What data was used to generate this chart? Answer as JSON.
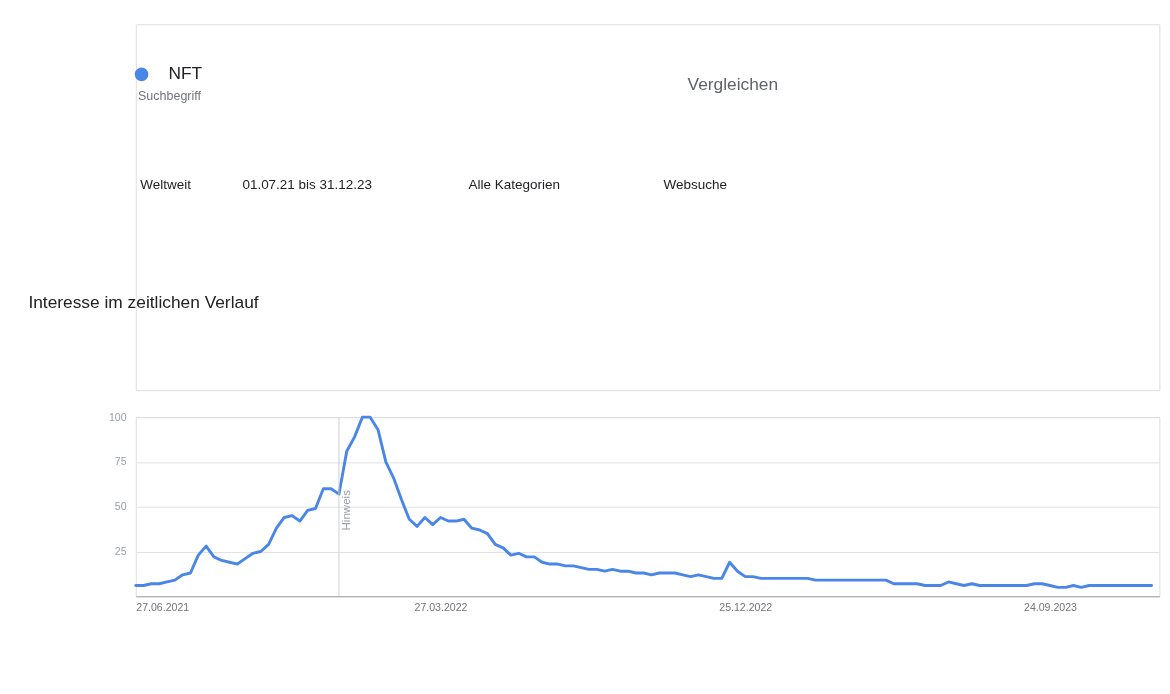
{
  "chart_data": {
    "type": "line",
    "title": "Interesse im zeitlichen Verlauf",
    "annotations": [
      "Suchbegriff",
      "Vergleichen",
      "Weltweit",
      "01.07.21 bis 31.12.23",
      "Alle Kategorien",
      "Websuche"
    ],
    "x": [
      "2021-06-27",
      "2021-07-04",
      "2021-07-11",
      "2021-07-18",
      "2021-07-25",
      "2021-08-01",
      "2021-08-08",
      "2021-08-15",
      "2021-08-22",
      "2021-08-29",
      "2021-09-05",
      "2021-09-12",
      "2021-09-19",
      "2021-09-26",
      "2021-10-03",
      "2021-10-10",
      "2021-10-17",
      "2021-10-24",
      "2021-10-31",
      "2021-11-07",
      "2021-11-14",
      "2021-11-21",
      "2021-11-28",
      "2021-12-05",
      "2021-12-12",
      "2021-12-19",
      "2021-12-26",
      "2022-01-02",
      "2022-01-09",
      "2022-01-16",
      "2022-01-23",
      "2022-01-30",
      "2022-02-06",
      "2022-02-13",
      "2022-02-20",
      "2022-02-27",
      "2022-03-06",
      "2022-03-13",
      "2022-03-20",
      "2022-03-27",
      "2022-04-03",
      "2022-04-10",
      "2022-04-17",
      "2022-04-24",
      "2022-05-01",
      "2022-05-08",
      "2022-05-15",
      "2022-05-22",
      "2022-05-29",
      "2022-06-05",
      "2022-06-12",
      "2022-06-19",
      "2022-06-26",
      "2022-07-03",
      "2022-07-10",
      "2022-07-17",
      "2022-07-24",
      "2022-07-31",
      "2022-08-07",
      "2022-08-14",
      "2022-08-21",
      "2022-08-28",
      "2022-09-04",
      "2022-09-11",
      "2022-09-18",
      "2022-09-25",
      "2022-10-02",
      "2022-10-09",
      "2022-10-16",
      "2022-10-23",
      "2022-10-30",
      "2022-11-06",
      "2022-11-13",
      "2022-11-20",
      "2022-11-27",
      "2022-12-04",
      "2022-12-11",
      "2022-12-18",
      "2022-12-25",
      "2023-01-01",
      "2023-01-08",
      "2023-01-15",
      "2023-01-22",
      "2023-01-29",
      "2023-02-05",
      "2023-02-12",
      "2023-02-19",
      "2023-02-26",
      "2023-03-05",
      "2023-03-12",
      "2023-03-19",
      "2023-03-26",
      "2023-04-02",
      "2023-04-09",
      "2023-04-16",
      "2023-04-23",
      "2023-04-30",
      "2023-05-07",
      "2023-05-14",
      "2023-05-21",
      "2023-05-28",
      "2023-06-04",
      "2023-06-11",
      "2023-06-18",
      "2023-06-25",
      "2023-07-02",
      "2023-07-09",
      "2023-07-16",
      "2023-07-23",
      "2023-07-30",
      "2023-08-06",
      "2023-08-13",
      "2023-08-20",
      "2023-08-27",
      "2023-09-03",
      "2023-09-10",
      "2023-09-17",
      "2023-09-24",
      "2023-10-01",
      "2023-10-08",
      "2023-10-15",
      "2023-10-22",
      "2023-10-29",
      "2023-11-05",
      "2023-11-12",
      "2023-11-19",
      "2023-11-26",
      "2023-12-03",
      "2023-12-10",
      "2023-12-17",
      "2023-12-24"
    ],
    "series": [
      {
        "name": "NFT",
        "color": "#4a86e8",
        "values": [
          6,
          6,
          7,
          7,
          8,
          9,
          12,
          13,
          23,
          28,
          22,
          20,
          19,
          18,
          21,
          24,
          25,
          29,
          38,
          44,
          45,
          42,
          48,
          49,
          60,
          60,
          57,
          81,
          89,
          100,
          100,
          93,
          75,
          66,
          54,
          43,
          39,
          44,
          40,
          44,
          42,
          42,
          43,
          38,
          37,
          35,
          29,
          27,
          23,
          24,
          22,
          22,
          19,
          18,
          18,
          17,
          17,
          16,
          15,
          15,
          14,
          15,
          14,
          14,
          13,
          13,
          12,
          13,
          13,
          13,
          12,
          11,
          12,
          11,
          10,
          10,
          19,
          14,
          11,
          11,
          10,
          10,
          10,
          10,
          10,
          10,
          10,
          9,
          9,
          9,
          9,
          9,
          9,
          9,
          9,
          9,
          9,
          7,
          7,
          7,
          7,
          6,
          6,
          6,
          8,
          7,
          6,
          7,
          6,
          6,
          6,
          6,
          6,
          6,
          6,
          7,
          7,
          6,
          5,
          5,
          6,
          5,
          6,
          6,
          6,
          6,
          6,
          6,
          6,
          6,
          6
        ]
      }
    ],
    "xlim": [
      "2021-06-27",
      "2023-12-31"
    ],
    "xticks": [
      {
        "value": "2021-06-27",
        "label": "27.06.2021"
      },
      {
        "value": "2022-03-27",
        "label": "27.03.2022"
      },
      {
        "value": "2022-12-25",
        "label": "25.12.2022"
      },
      {
        "value": "2023-09-24",
        "label": "24.09.2023"
      }
    ],
    "ylim": [
      0,
      100
    ],
    "yticks": [
      25,
      50,
      75,
      100
    ],
    "ref_lines": [
      {
        "axis": "x",
        "value": "2021-12-26",
        "label": "Hinweis",
        "color": "#cccccc"
      }
    ],
    "grid": "y",
    "legend": "top left",
    "line_style": "solid",
    "marker": "none"
  }
}
